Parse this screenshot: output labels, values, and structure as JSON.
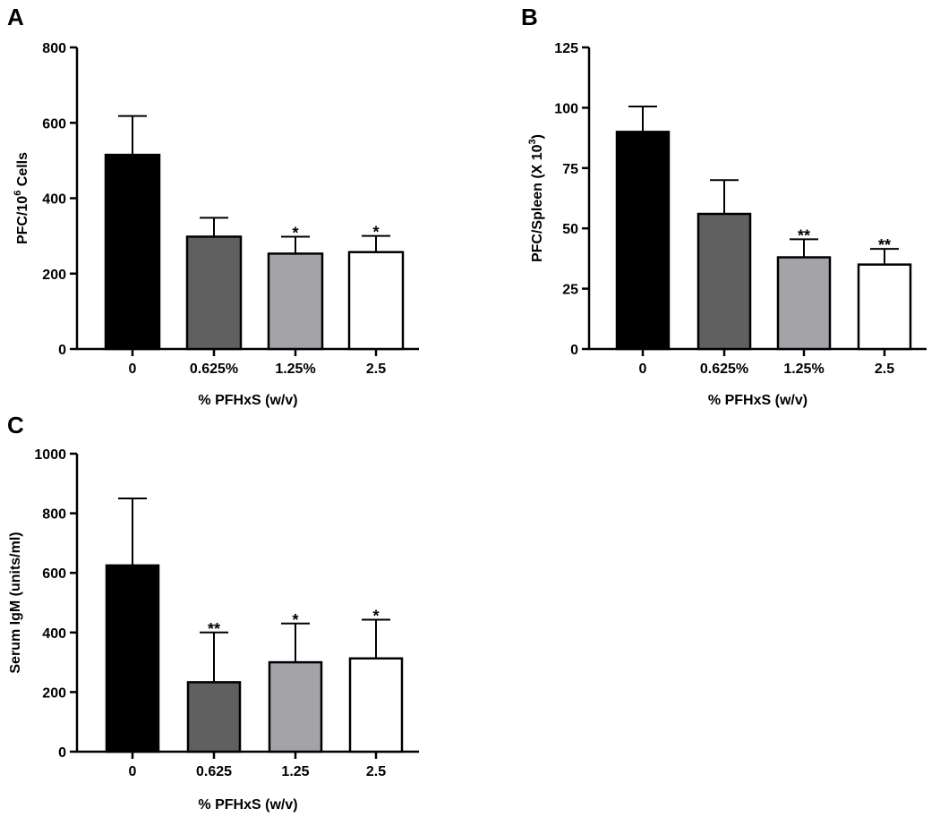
{
  "chart_data": [
    {
      "id": "A",
      "type": "bar",
      "panel_label": "A",
      "categories": [
        "0",
        "0.625%",
        "1.25%",
        "2.5"
      ],
      "values": [
        515,
        298,
        253,
        257
      ],
      "errors": [
        103,
        50,
        45,
        43
      ],
      "significance": [
        "",
        "",
        "*",
        "*"
      ],
      "colors": [
        "#000000",
        "#606060",
        "#a4a4a8",
        "#ffffff"
      ],
      "xlabel": "% PFHxS (w/v)",
      "ylabel_main": "PFC/10",
      "ylabel_sup": "6",
      "ylabel_tail": " Cells",
      "ylim": [
        0,
        800
      ],
      "yticks": [
        "0",
        "200",
        "400",
        "600",
        "800"
      ]
    },
    {
      "id": "B",
      "type": "bar",
      "panel_label": "B",
      "categories": [
        "0",
        "0.625%",
        "1.25%",
        "2.5"
      ],
      "values": [
        90,
        56,
        38,
        35
      ],
      "errors": [
        10.5,
        14,
        7.5,
        6.5
      ],
      "significance": [
        "",
        "",
        "**",
        "**"
      ],
      "colors": [
        "#000000",
        "#606060",
        "#a4a4a8",
        "#ffffff"
      ],
      "xlabel": "% PFHxS (w/v)",
      "ylabel_main": "PFC/Spleen (X 10",
      "ylabel_sup": "3",
      "ylabel_tail": ")",
      "ylim": [
        0,
        125
      ],
      "yticks": [
        "0",
        "25",
        "50",
        "75",
        "100",
        "125"
      ]
    },
    {
      "id": "C",
      "type": "bar",
      "panel_label": "C",
      "categories": [
        "0",
        "0.625",
        "1.25",
        "2.5"
      ],
      "values": [
        625,
        233,
        300,
        313
      ],
      "errors": [
        225,
        167,
        130,
        130
      ],
      "significance": [
        "",
        "**",
        "*",
        "*"
      ],
      "colors": [
        "#000000",
        "#606060",
        "#a4a4a8",
        "#ffffff"
      ],
      "xlabel": "% PFHxS  (w/v)",
      "ylabel_main": "Serum IgM (units/ml)",
      "ylabel_sup": "",
      "ylabel_tail": "",
      "ylim": [
        0,
        1000
      ],
      "yticks": [
        "0",
        "200",
        "400",
        "600",
        "800",
        "1000"
      ]
    }
  ]
}
